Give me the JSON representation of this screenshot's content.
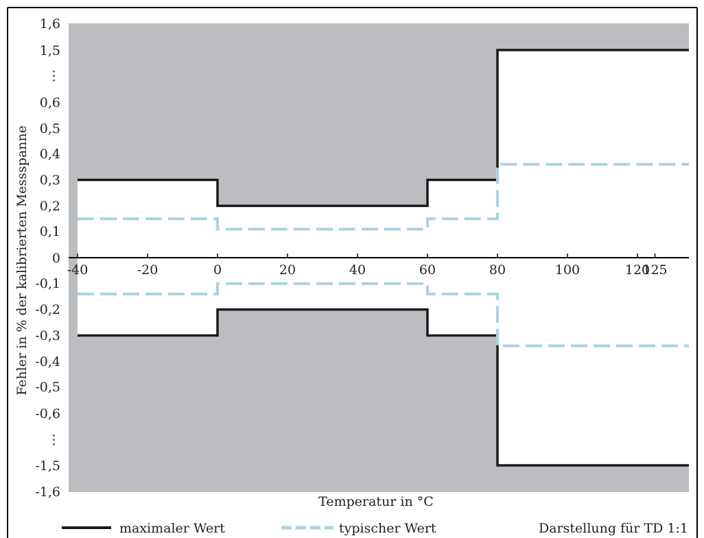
{
  "chart_data": {
    "type": "line",
    "title": "",
    "xlabel": "Temperatur in °C",
    "ylabel": "Fehler in % der kalibrierten Messspanne",
    "note": "Darstellung für TD 1:1",
    "x_ticks": [
      {
        "value": -40,
        "label": "-40"
      },
      {
        "value": -20,
        "label": "-20"
      },
      {
        "value": 0,
        "label": "0"
      },
      {
        "value": 20,
        "label": "20"
      },
      {
        "value": 40,
        "label": "40"
      },
      {
        "value": 60,
        "label": "60"
      },
      {
        "value": 80,
        "label": "80"
      },
      {
        "value": 100,
        "label": "100"
      },
      {
        "value": 120,
        "label": "120"
      },
      {
        "value": 125,
        "label": "125"
      }
    ],
    "y_ticks": [
      "1,6",
      "1,5",
      "⋮",
      "0,6",
      "0,5",
      "0,4",
      "0,3",
      "0,2",
      "0,1",
      "0",
      "-0,1",
      "-0,2",
      "-0,3",
      "-0,4",
      "-0,5",
      "-0,6",
      "⋮",
      "-1,5",
      "-1,6"
    ],
    "xlim": [
      -40,
      125
    ],
    "series": [
      {
        "name": "maximaler Wert",
        "color": "#1a1a1a",
        "style": "solid",
        "upper": [
          [
            -40,
            0.3
          ],
          [
            0,
            0.3
          ],
          [
            0,
            0.2
          ],
          [
            60,
            0.2
          ],
          [
            60,
            0.3
          ],
          [
            80,
            0.3
          ],
          [
            80,
            1.5
          ],
          [
            125,
            1.5
          ]
        ],
        "lower": [
          [
            -40,
            -0.3
          ],
          [
            0,
            -0.3
          ],
          [
            0,
            -0.2
          ],
          [
            60,
            -0.2
          ],
          [
            60,
            -0.3
          ],
          [
            80,
            -0.3
          ],
          [
            80,
            -1.5
          ],
          [
            125,
            -1.5
          ]
        ]
      },
      {
        "name": "typischer Wert",
        "color": "#a8d3e3",
        "style": "dashed",
        "upper": [
          [
            -40,
            0.15
          ],
          [
            0,
            0.15
          ],
          [
            0,
            0.11
          ],
          [
            60,
            0.11
          ],
          [
            60,
            0.15
          ],
          [
            80,
            0.15
          ],
          [
            80,
            0.36
          ],
          [
            125,
            0.36
          ]
        ],
        "lower": [
          [
            -40,
            -0.14
          ],
          [
            0,
            -0.14
          ],
          [
            0,
            -0.1
          ],
          [
            60,
            -0.1
          ],
          [
            60,
            -0.14
          ],
          [
            80,
            -0.14
          ],
          [
            80,
            -0.34
          ],
          [
            125,
            -0.34
          ]
        ]
      }
    ],
    "shading": "area outside maximaler Wert shaded grey",
    "shade_color": "#bcbdc0"
  }
}
